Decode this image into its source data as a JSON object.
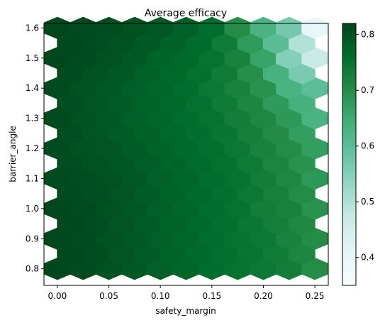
{
  "chart_data": {
    "type": "heatmap",
    "subtype": "hexbin",
    "title": "Average efficacy",
    "xlabel": "safety_margin",
    "ylabel": "barrier_angle",
    "xlim": [
      -0.013,
      0.263
    ],
    "ylim": [
      0.745,
      1.615
    ],
    "xticks": [
      0.0,
      0.05,
      0.1,
      0.15,
      0.2,
      0.25
    ],
    "xtick_labels": [
      "0.00",
      "0.05",
      "0.10",
      "0.15",
      "0.20",
      "0.25"
    ],
    "yticks": [
      0.8,
      0.9,
      1.0,
      1.1,
      1.2,
      1.3,
      1.4,
      1.5,
      1.6
    ],
    "ytick_labels": [
      "0.8",
      "0.9",
      "1.0",
      "1.1",
      "1.2",
      "1.3",
      "1.4",
      "1.5",
      "1.6"
    ],
    "colormap": "BuGn",
    "colormap_stops": [
      "#f7fcfd",
      "#e5f5f9",
      "#ccece6",
      "#99d8c9",
      "#66c2a4",
      "#41ae76",
      "#238b45",
      "#006d2c",
      "#00441b"
    ],
    "value_range": [
      0.35,
      0.82
    ],
    "colorbar": {
      "placement": "right",
      "ticks": [
        0.4,
        0.5,
        0.6,
        0.7,
        0.8
      ],
      "tick_labels": [
        "0.4",
        "0.5",
        "0.6",
        "0.7",
        "0.8"
      ]
    },
    "grid": false,
    "bin_centers_x": [
      0.0,
      0.025,
      0.05,
      0.075,
      0.1,
      0.125,
      0.15,
      0.175,
      0.2,
      0.225,
      0.25
    ],
    "bin_centers_y": [
      0.8,
      0.85,
      0.9,
      0.95,
      1.0,
      1.05,
      1.1,
      1.15,
      1.2,
      1.25,
      1.3,
      1.35,
      1.4,
      1.45,
      1.5,
      1.55,
      1.6
    ],
    "estimated_values_by_row": {
      "note": "",
      "0.80": [
        0.815,
        0.81,
        0.8,
        0.79,
        0.78,
        0.77,
        0.76,
        0.75,
        0.74,
        0.73,
        0.7
      ],
      "0.90": [
        0.815,
        0.81,
        0.8,
        0.79,
        0.78,
        0.77,
        0.76,
        0.75,
        0.74,
        0.72,
        0.7
      ],
      "1.00": [
        0.815,
        0.81,
        0.8,
        0.79,
        0.78,
        0.77,
        0.76,
        0.75,
        0.73,
        0.72,
        0.69
      ],
      "1.10": [
        0.81,
        0.805,
        0.8,
        0.79,
        0.78,
        0.77,
        0.76,
        0.75,
        0.73,
        0.71,
        0.68
      ],
      "1.20": [
        0.81,
        0.8,
        0.795,
        0.785,
        0.775,
        0.765,
        0.755,
        0.74,
        0.72,
        0.7,
        0.67
      ],
      "1.30": [
        0.81,
        0.8,
        0.79,
        0.78,
        0.77,
        0.76,
        0.75,
        0.73,
        0.71,
        0.68,
        0.63
      ],
      "1.40": [
        0.81,
        0.8,
        0.79,
        0.78,
        0.77,
        0.76,
        0.74,
        0.72,
        0.69,
        0.63,
        0.6
      ],
      "1.50": [
        0.815,
        0.81,
        0.8,
        0.79,
        0.775,
        0.765,
        0.75,
        0.72,
        0.66,
        0.55,
        0.47
      ],
      "1.60": [
        0.815,
        0.81,
        0.805,
        0.8,
        0.79,
        0.78,
        0.76,
        0.7,
        0.63,
        0.57,
        0.4
      ]
    }
  }
}
